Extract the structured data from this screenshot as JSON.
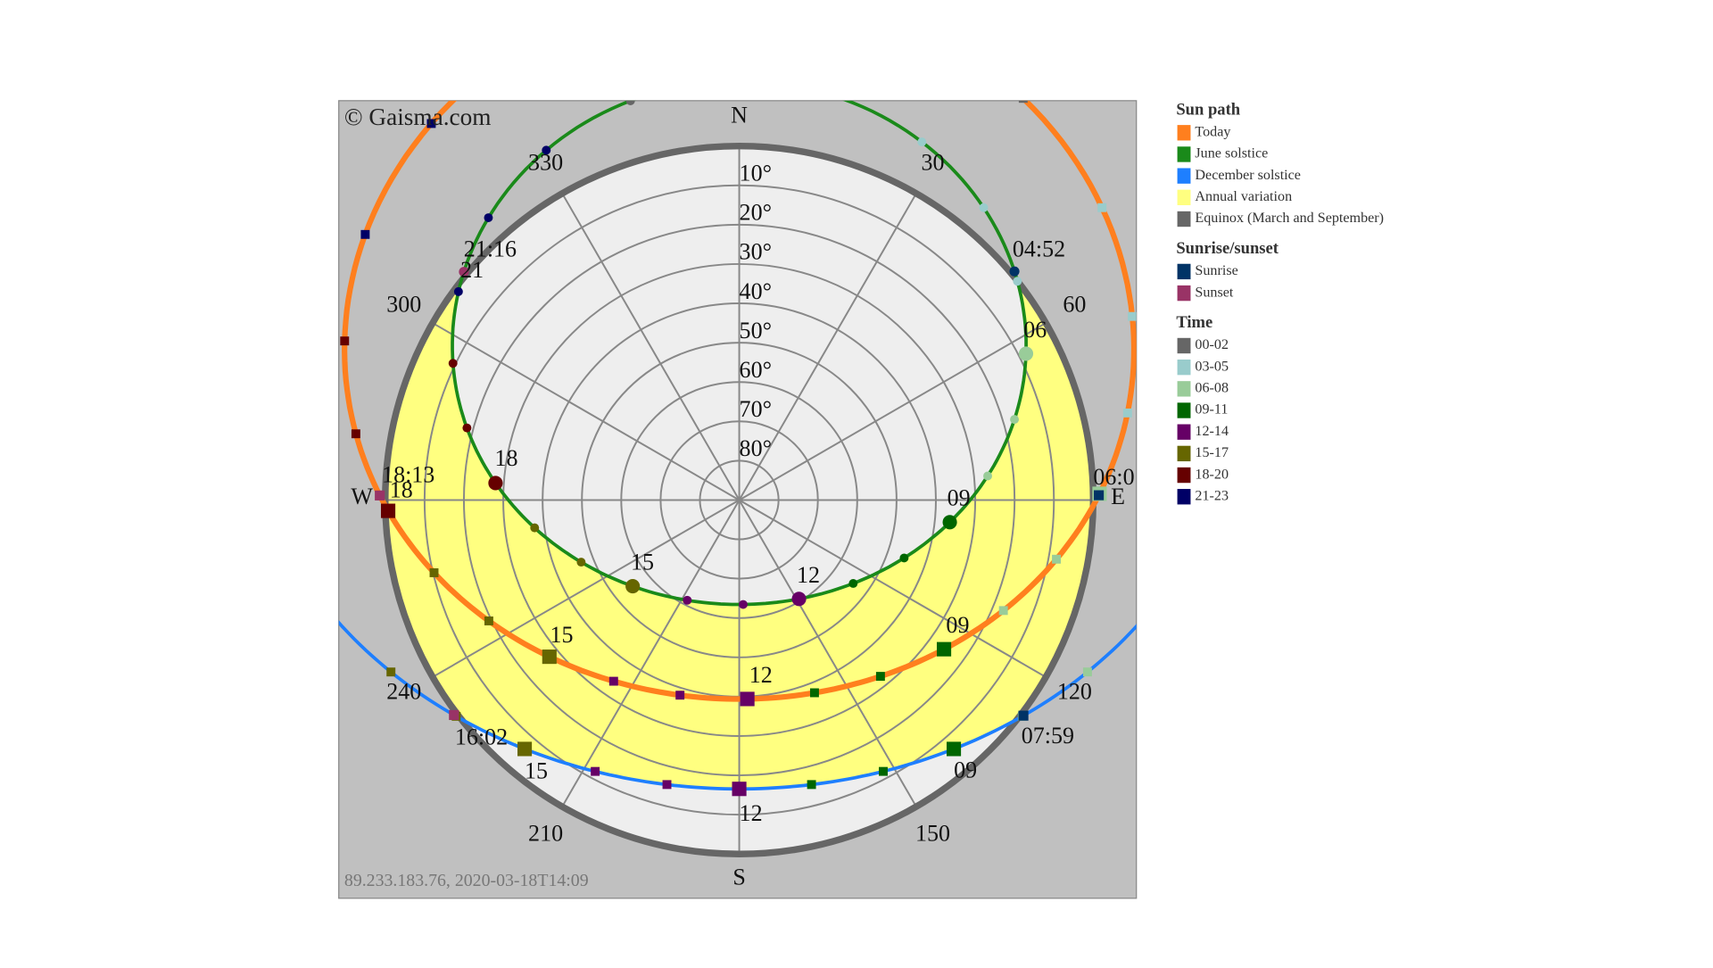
{
  "watermark": "© Gaisma.com",
  "footer": "89.233.183.76, 2020-03-18T14:09",
  "compass": [
    "N",
    "E",
    "S"
  ],
  "altitude_labels": [
    "10°",
    "20°",
    "30°",
    "40°",
    "50°",
    "60°",
    "70°",
    "80°"
  ],
  "azimuth_labels": [
    "30",
    "60",
    "120",
    "150",
    "210",
    "240",
    "300",
    "330"
  ],
  "time_labels": [
    "04:52",
    "21:16",
    "21",
    "06",
    "09",
    "12",
    "15",
    "18",
    "18:13",
    "W",
    "18",
    "06:0",
    "E",
    "09",
    "12",
    "15",
    "07:59",
    "09",
    "12",
    "15",
    "16:02"
  ],
  "legend": [
    {
      "title": "Sun path",
      "items": [
        {
          "label": "Today",
          "color": "#ff7f1e"
        },
        {
          "label": "June solstice",
          "color": "#1a8a1a"
        },
        {
          "label": "December solstice",
          "color": "#1e7fff"
        },
        {
          "label": "Annual variation",
          "color": "#ffff80"
        },
        {
          "label": "Equinox (March and September)",
          "color": "#666666"
        }
      ]
    },
    {
      "title": "Sunrise/sunset",
      "items": [
        {
          "label": "Sunrise",
          "color": "#003366"
        },
        {
          "label": "Sunset",
          "color": "#993366"
        }
      ]
    },
    {
      "title": "Time",
      "items": [
        {
          "label": "00-02",
          "color": "#666666"
        },
        {
          "label": "03-05",
          "color": "#99cccc"
        },
        {
          "label": "06-08",
          "color": "#99cc99"
        },
        {
          "label": "09-11",
          "color": "#006600"
        },
        {
          "label": "12-14",
          "color": "#660066"
        },
        {
          "label": "15-17",
          "color": "#666600"
        },
        {
          "label": "18-20",
          "color": "#660000"
        },
        {
          "label": "21-23",
          "color": "#000066"
        }
      ]
    }
  ]
}
